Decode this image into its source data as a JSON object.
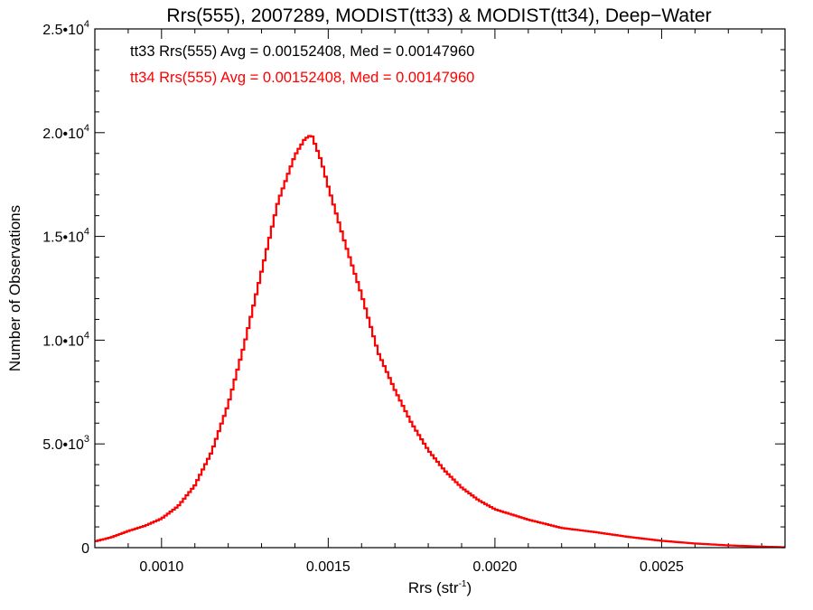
{
  "chart_data": {
    "type": "histogram",
    "title": "Rrs(555), 2007289, MODIST(tt33) & MODIST(tt34), Deep−Water",
    "xlabel": "Rrs (str",
    "xlabel_sup": "-1",
    "xlabel_suffix": ")",
    "ylabel": "Number of Observations",
    "xlim": [
      0.0008,
      0.00287
    ],
    "ylim": [
      0,
      25000
    ],
    "x_ticks": [
      {
        "value": 0.001,
        "label": "0.0010"
      },
      {
        "value": 0.0015,
        "label": "0.0015"
      },
      {
        "value": 0.002,
        "label": "0.0020"
      },
      {
        "value": 0.0025,
        "label": "0.0025"
      }
    ],
    "y_ticks": [
      {
        "value": 0,
        "label": "0",
        "exp": ""
      },
      {
        "value": 5000,
        "label": "5.0•10",
        "exp": "3"
      },
      {
        "value": 10000,
        "label": "1.0•10",
        "exp": "4"
      },
      {
        "value": 15000,
        "label": "1.5•10",
        "exp": "4"
      },
      {
        "value": 20000,
        "label": "2.0•10",
        "exp": "4"
      },
      {
        "value": 25000,
        "label": "2.5•10",
        "exp": "4"
      }
    ],
    "legend": [
      {
        "text": "tt33 Rrs(555) Avg = 0.00152408, Med = 0.00147960",
        "color": "#000000"
      },
      {
        "text": "tt34 Rrs(555) Avg = 0.00152408, Med = 0.00147960",
        "color": "#ff0000"
      }
    ],
    "legend_position": "top-left",
    "series": [
      {
        "color": "#000000",
        "style": "step",
        "x": [
          0.0008,
          0.00085,
          0.0009,
          0.00095,
          0.001,
          0.00105,
          0.0011,
          0.00115,
          0.0012,
          0.00125,
          0.0013,
          0.00135,
          0.0014,
          0.00143,
          0.00145,
          0.00148,
          0.0015,
          0.00155,
          0.0016,
          0.00165,
          0.0017,
          0.00175,
          0.0018,
          0.00185,
          0.0019,
          0.00195,
          0.002,
          0.0021,
          0.0022,
          0.0023,
          0.0024,
          0.0025,
          0.0026,
          0.0027,
          0.0028,
          0.00287
        ],
        "y": [
          300,
          500,
          800,
          1050,
          1400,
          2000,
          3000,
          4600,
          6900,
          9900,
          13300,
          16700,
          18900,
          19700,
          19900,
          18600,
          17400,
          14700,
          12200,
          9400,
          7600,
          6000,
          4700,
          3700,
          2900,
          2300,
          1850,
          1350,
          950,
          750,
          520,
          330,
          200,
          110,
          50,
          20
        ]
      },
      {
        "color": "#ff0000",
        "style": "step",
        "x": [
          0.0008,
          0.00085,
          0.0009,
          0.00095,
          0.001,
          0.00105,
          0.0011,
          0.00115,
          0.0012,
          0.00125,
          0.0013,
          0.00135,
          0.0014,
          0.00143,
          0.00145,
          0.00148,
          0.0015,
          0.00155,
          0.0016,
          0.00165,
          0.0017,
          0.00175,
          0.0018,
          0.00185,
          0.0019,
          0.00195,
          0.002,
          0.0021,
          0.0022,
          0.0023,
          0.0024,
          0.0025,
          0.0026,
          0.0027,
          0.0028,
          0.00287
        ],
        "y": [
          300,
          500,
          800,
          1050,
          1400,
          2000,
          3000,
          4600,
          6900,
          9900,
          13300,
          16700,
          18900,
          19700,
          19900,
          18600,
          17400,
          14700,
          12200,
          9400,
          7600,
          6000,
          4700,
          3700,
          2900,
          2300,
          1850,
          1350,
          950,
          750,
          520,
          330,
          200,
          110,
          50,
          20
        ]
      }
    ]
  }
}
